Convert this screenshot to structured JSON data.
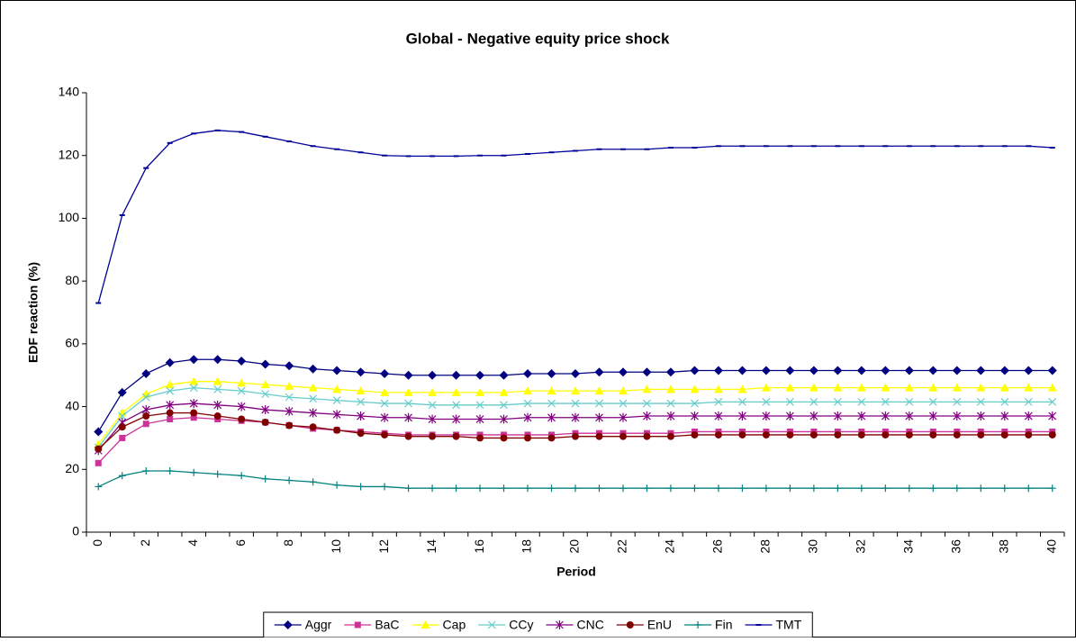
{
  "chart_data": {
    "type": "line",
    "title": "Global - Negative equity price shock",
    "x_label": "Period",
    "y_label": "EDF reaction (%)",
    "categories": [
      0,
      null,
      2,
      null,
      4,
      null,
      6,
      null,
      8,
      null,
      10,
      null,
      12,
      null,
      14,
      null,
      16,
      null,
      18,
      null,
      20,
      null,
      22,
      null,
      24,
      null,
      26,
      null,
      28,
      null,
      30,
      null,
      32,
      null,
      34,
      null,
      36,
      null,
      38,
      null,
      40
    ],
    "ylim": [
      0,
      140
    ],
    "yticks": [
      0,
      20,
      40,
      60,
      80,
      100,
      120,
      140
    ],
    "legend": "bottom",
    "series": [
      {
        "name": "Aggr",
        "color": "#000080",
        "marker": "diamond",
        "values": [
          32,
          44.5,
          50.5,
          54,
          55,
          55,
          54.5,
          53.5,
          53,
          52,
          51.5,
          51,
          50.5,
          50,
          50,
          50,
          50,
          50,
          50.5,
          50.5,
          50.5,
          51,
          51,
          51,
          51,
          51.5,
          51.5,
          51.5,
          51.5,
          51.5,
          51.5,
          51.5,
          51.5,
          51.5,
          51.5,
          51.5,
          51.5,
          51.5,
          51.5,
          51.5,
          51.5
        ]
      },
      {
        "name": "BaC",
        "color": "#cc3399",
        "marker": "square",
        "values": [
          22,
          30,
          34.5,
          36,
          36.5,
          36,
          35.5,
          35,
          34,
          33,
          32.5,
          32,
          31.5,
          31,
          31,
          31,
          31,
          31,
          31,
          31,
          31.5,
          31.5,
          31.5,
          31.5,
          31.5,
          32,
          32,
          32,
          32,
          32,
          32,
          32,
          32,
          32,
          32,
          32,
          32,
          32,
          32,
          32,
          32
        ]
      },
      {
        "name": "Cap",
        "color": "#ffff00",
        "marker": "triangle",
        "values": [
          28,
          38,
          44,
          47,
          48,
          48,
          47.5,
          47,
          46.5,
          46,
          45.5,
          45,
          44.5,
          44.5,
          44.5,
          44.5,
          44.5,
          44.5,
          45,
          45,
          45,
          45,
          45,
          45.5,
          45.5,
          45.5,
          45.5,
          45.5,
          46,
          46,
          46,
          46,
          46,
          46,
          46,
          46,
          46,
          46,
          46,
          46,
          46
        ]
      },
      {
        "name": "CCy",
        "color": "#66cccc",
        "marker": "cross",
        "values": [
          27,
          37,
          43,
          45,
          46,
          45.5,
          45,
          44,
          43,
          42.5,
          42,
          41.5,
          41,
          41,
          40.5,
          40.5,
          40.5,
          40.5,
          41,
          41,
          41,
          41,
          41,
          41,
          41,
          41,
          41.5,
          41.5,
          41.5,
          41.5,
          41.5,
          41.5,
          41.5,
          41.5,
          41.5,
          41.5,
          41.5,
          41.5,
          41.5,
          41.5,
          41.5
        ]
      },
      {
        "name": "CNC",
        "color": "#800080",
        "marker": "star",
        "values": [
          26,
          35,
          39,
          40.5,
          41,
          40.5,
          40,
          39,
          38.5,
          38,
          37.5,
          37,
          36.5,
          36.5,
          36,
          36,
          36,
          36,
          36.5,
          36.5,
          36.5,
          36.5,
          36.5,
          37,
          37,
          37,
          37,
          37,
          37,
          37,
          37,
          37,
          37,
          37,
          37,
          37,
          37,
          37,
          37,
          37,
          37
        ]
      },
      {
        "name": "EnU",
        "color": "#800000",
        "marker": "circle",
        "values": [
          26.5,
          33.5,
          37,
          38,
          38,
          37,
          36,
          35,
          34,
          33.5,
          32.5,
          31.5,
          31,
          30.5,
          30.5,
          30.5,
          30,
          30,
          30,
          30,
          30.5,
          30.5,
          30.5,
          30.5,
          30.5,
          31,
          31,
          31,
          31,
          31,
          31,
          31,
          31,
          31,
          31,
          31,
          31,
          31,
          31,
          31,
          31
        ]
      },
      {
        "name": "Fin",
        "color": "#008080",
        "marker": "plus",
        "values": [
          14.5,
          18,
          19.5,
          19.5,
          19,
          18.5,
          18,
          17,
          16.5,
          16,
          15,
          14.5,
          14.5,
          14,
          14,
          14,
          14,
          14,
          14,
          14,
          14,
          14,
          14,
          14,
          14,
          14,
          14,
          14,
          14,
          14,
          14,
          14,
          14,
          14,
          14,
          14,
          14,
          14,
          14,
          14,
          14
        ]
      },
      {
        "name": "TMT",
        "color": "#000099",
        "marker": "dash",
        "values": [
          73,
          101,
          116,
          124,
          127,
          128,
          127.5,
          126,
          124.5,
          123,
          122,
          121,
          120,
          119.8,
          119.8,
          119.8,
          120,
          120,
          120.5,
          121,
          121.5,
          122,
          122,
          122,
          122.5,
          122.5,
          123,
          123,
          123,
          123,
          123,
          123,
          123,
          123,
          123,
          123,
          123,
          123,
          123,
          123,
          122.5
        ]
      }
    ]
  }
}
